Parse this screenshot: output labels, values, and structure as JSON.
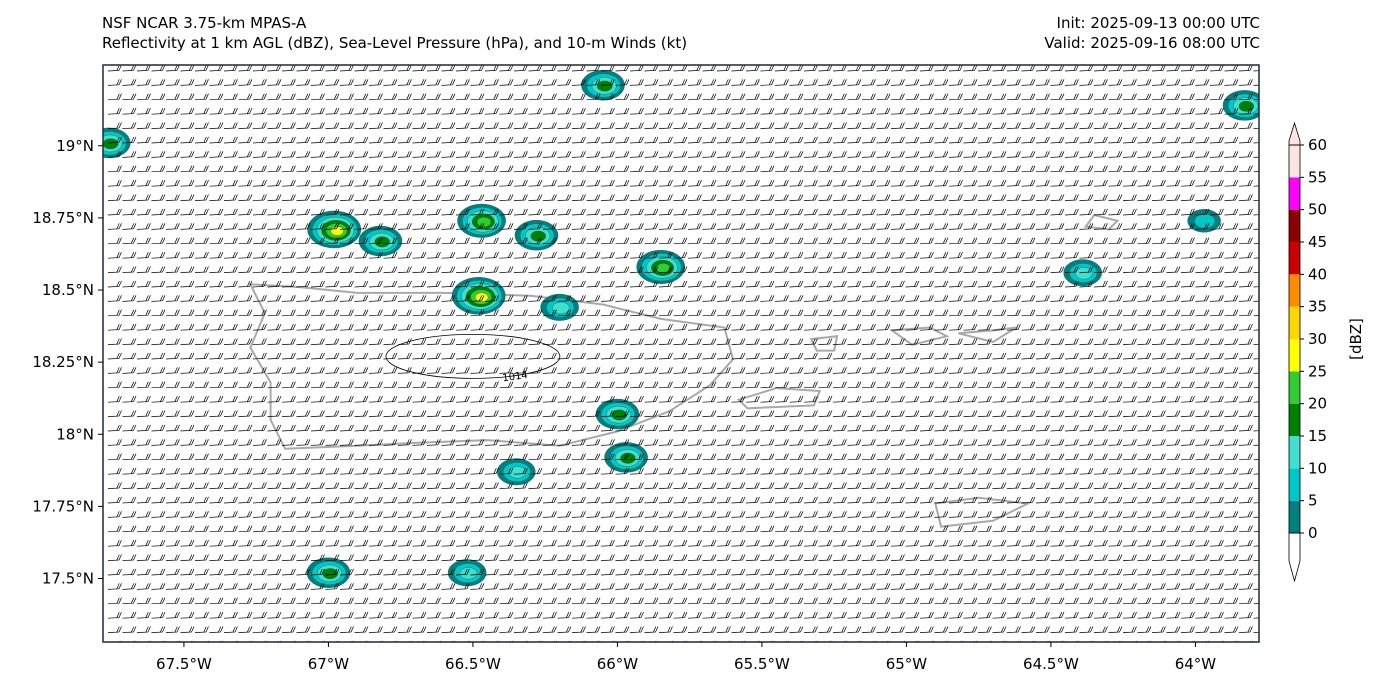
{
  "header": {
    "model_line": "NSF NCAR 3.75-km MPAS-A",
    "fields_line": "Reflectivity at 1 km AGL (dBZ), Sea-Level Pressure (hPa), and 10-m Winds (kt)",
    "init_line": "Init: 2025-09-13 00:00 UTC",
    "valid_line": "Valid: 2025-09-16 08:00 UTC"
  },
  "map": {
    "extent": {
      "lon_min": -67.78,
      "lon_max": -63.78,
      "lat_min": 17.28,
      "lat_max": 19.28
    },
    "x_ticks": [
      {
        "lon": -67.5,
        "label": "67.5°W"
      },
      {
        "lon": -67.0,
        "label": "67°W"
      },
      {
        "lon": -66.5,
        "label": "66.5°W"
      },
      {
        "lon": -66.0,
        "label": "66°W"
      },
      {
        "lon": -65.5,
        "label": "65.5°W"
      },
      {
        "lon": -65.0,
        "label": "65°W"
      },
      {
        "lon": -64.5,
        "label": "64.5°W"
      },
      {
        "lon": -64.0,
        "label": "64°W"
      }
    ],
    "y_ticks": [
      {
        "lat": 19.0,
        "label": "19°N"
      },
      {
        "lat": 18.75,
        "label": "18.75°N"
      },
      {
        "lat": 18.5,
        "label": "18.5°N"
      },
      {
        "lat": 18.25,
        "label": "18.25°N"
      },
      {
        "lat": 18.0,
        "label": "18°N"
      },
      {
        "lat": 17.75,
        "label": "17.75°N"
      },
      {
        "lat": 17.5,
        "label": "17.5°N"
      }
    ],
    "pressure_contour": {
      "label": "1014",
      "center_lon": -66.5,
      "center_lat": 18.27,
      "unit": "hPa"
    },
    "wind": {
      "background_direction_deg": 90,
      "background_speed_kt": 20
    },
    "cells": [
      {
        "lon": -67.76,
        "lat": 19.01,
        "max_dbz": 20
      },
      {
        "lon": -66.98,
        "lat": 18.71,
        "max_dbz": 30
      },
      {
        "lon": -66.82,
        "lat": 18.67,
        "max_dbz": 20
      },
      {
        "lon": -66.47,
        "lat": 18.74,
        "max_dbz": 25
      },
      {
        "lon": -66.28,
        "lat": 18.69,
        "max_dbz": 20
      },
      {
        "lon": -66.05,
        "lat": 19.21,
        "max_dbz": 20
      },
      {
        "lon": -65.85,
        "lat": 18.58,
        "max_dbz": 25
      },
      {
        "lon": -66.48,
        "lat": 18.48,
        "max_dbz": 30
      },
      {
        "lon": -66.2,
        "lat": 18.44,
        "max_dbz": 15
      },
      {
        "lon": -66.0,
        "lat": 18.07,
        "max_dbz": 20
      },
      {
        "lon": -65.97,
        "lat": 17.92,
        "max_dbz": 20
      },
      {
        "lon": -66.35,
        "lat": 17.87,
        "max_dbz": 15
      },
      {
        "lon": -67.0,
        "lat": 17.52,
        "max_dbz": 20
      },
      {
        "lon": -66.52,
        "lat": 17.52,
        "max_dbz": 15
      },
      {
        "lon": -64.39,
        "lat": 18.56,
        "max_dbz": 15
      },
      {
        "lon": -63.97,
        "lat": 18.74,
        "max_dbz": 10
      },
      {
        "lon": -63.83,
        "lat": 19.14,
        "max_dbz": 20
      }
    ]
  },
  "colorbar": {
    "label": "[dBZ]",
    "levels": [
      0,
      5,
      10,
      15,
      20,
      25,
      30,
      35,
      40,
      45,
      50,
      55,
      60
    ],
    "tick_labels": [
      "0",
      "5",
      "10",
      "15",
      "20",
      "25",
      "30",
      "35",
      "40",
      "45",
      "50",
      "55",
      "60"
    ],
    "colors": [
      "#ffffff",
      "#008080",
      "#00c8c8",
      "#40e0d0",
      "#008000",
      "#32cd32",
      "#ffff00",
      "#ffd700",
      "#ff8c00",
      "#cc0000",
      "#8b0000",
      "#ff00ff",
      "#ffe4e1"
    ]
  }
}
